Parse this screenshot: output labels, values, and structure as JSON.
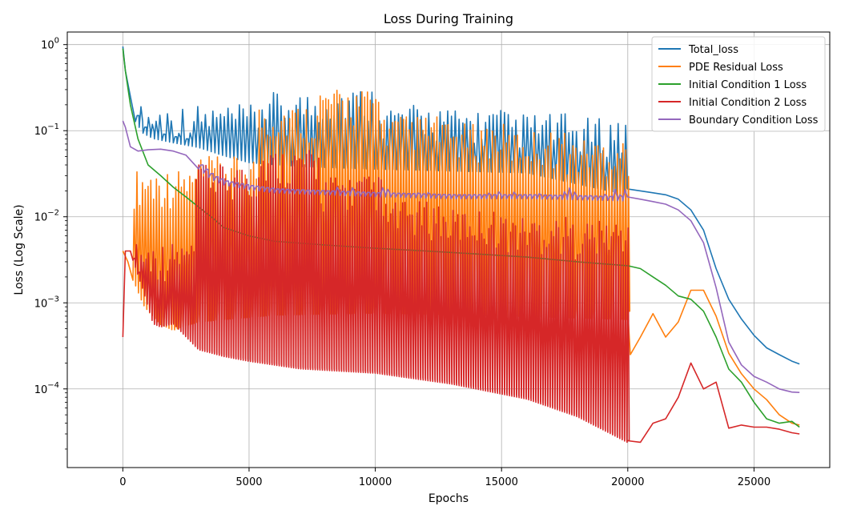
{
  "chart_data": {
    "type": "line",
    "title": "Loss During Training",
    "xlabel": "Epochs",
    "ylabel": "Loss (Log Scale)",
    "xlim": [
      -2200,
      28000
    ],
    "ylim": [
      1.22e-05,
      1.4
    ],
    "yscale": "log",
    "grid": true,
    "legend_position": "top-right",
    "x_ticks": [
      0,
      5000,
      10000,
      15000,
      20000,
      25000
    ],
    "x_tick_labels": [
      "0",
      "5000",
      "10000",
      "15000",
      "20000",
      "25000"
    ],
    "y_ticks": [
      1,
      0.1,
      0.01,
      0.001,
      0.0001
    ],
    "y_tick_labels": [
      {
        "base": "10",
        "exp": "0"
      },
      {
        "base": "10",
        "exp": "−1"
      },
      {
        "base": "10",
        "exp": "−2"
      },
      {
        "base": "10",
        "exp": "−3"
      },
      {
        "base": "10",
        "exp": "−4"
      }
    ],
    "series": [
      {
        "name": "Total_loss",
        "color": "#1f77b4",
        "x": [
          0,
          100,
          300,
          500,
          800,
          1200,
          2000,
          3000,
          4000,
          5000,
          7000,
          10000,
          13000,
          16000,
          20000,
          20500,
          21000,
          21500,
          22000,
          22500,
          23000,
          23500,
          24000,
          24500,
          25000,
          25500,
          26000,
          26500,
          26800
        ],
        "y": [
          0.95,
          0.5,
          0.25,
          0.15,
          0.11,
          0.095,
          0.085,
          0.075,
          0.06,
          0.05,
          0.045,
          0.042,
          0.04,
          0.038,
          0.021,
          0.02,
          0.019,
          0.018,
          0.016,
          0.012,
          0.007,
          0.0025,
          0.0011,
          0.00065,
          0.00042,
          0.0003,
          0.00025,
          0.00021,
          0.000195
        ],
        "spikes": {
          "start": 500,
          "end": 20000,
          "step": 150,
          "low_factor": 0.85,
          "high": [
            0.2,
            0.2,
            0.28,
            0.32,
            0.2,
            0.18,
            0.16,
            0.14
          ]
        }
      },
      {
        "name": "PDE Residual Loss",
        "color": "#ff7f0e",
        "x": [
          0,
          200,
          500,
          800,
          1000,
          1500,
          2000,
          2500,
          3000,
          4000,
          6000,
          10000,
          14000,
          17000,
          20000,
          20100,
          20500,
          21000,
          21500,
          22000,
          22500,
          23000,
          23500,
          24000,
          24500,
          25000,
          25500,
          26000,
          26500,
          26800
        ],
        "y": [
          0.004,
          0.003,
          0.002,
          0.0012,
          0.001,
          0.0007,
          0.0006,
          0.00068,
          0.00075,
          0.0008,
          0.0009,
          0.00095,
          0.0009,
          0.00085,
          0.0008,
          0.00025,
          0.0004,
          0.00075,
          0.0004,
          0.0006,
          0.0014,
          0.0014,
          0.0007,
          0.00026,
          0.00015,
          0.0001,
          7.5e-05,
          5e-05,
          4e-05,
          3.8e-05
        ],
        "spikes": {
          "start": 400,
          "end": 20000,
          "step": 110,
          "low_factor": 0.8,
          "high": [
            0.035,
            0.05,
            0.2,
            0.3,
            0.15,
            0.12,
            0.1,
            0.08
          ]
        }
      },
      {
        "name": "Initial Condition 1 Loss",
        "color": "#2ca02c",
        "x": [
          0,
          100,
          300,
          600,
          1000,
          1500,
          2000,
          2500,
          3000,
          3500,
          4000,
          5000,
          6000,
          8000,
          10000,
          12000,
          14000,
          16000,
          18000,
          20000,
          20500,
          21000,
          21500,
          22000,
          22500,
          23000,
          23500,
          24000,
          24500,
          25000,
          25500,
          26000,
          26500,
          26800
        ],
        "y": [
          0.9,
          0.5,
          0.2,
          0.08,
          0.04,
          0.03,
          0.022,
          0.017,
          0.013,
          0.01,
          0.0075,
          0.006,
          0.0052,
          0.0047,
          0.0043,
          0.004,
          0.0037,
          0.0034,
          0.003,
          0.0027,
          0.0025,
          0.002,
          0.0016,
          0.0012,
          0.0011,
          0.0008,
          0.0004,
          0.00017,
          0.00012,
          7e-05,
          4.5e-05,
          4e-05,
          4.2e-05,
          3.6e-05
        ],
        "spikes": null
      },
      {
        "name": "Initial Condition 2 Loss",
        "color": "#d62728",
        "x": [
          0,
          100,
          300,
          800,
          1200,
          1500,
          2000,
          3000,
          4000,
          5000,
          7000,
          10000,
          13000,
          16000,
          18000,
          20000,
          20500,
          21000,
          21500,
          22000,
          22500,
          23000,
          23500,
          24000,
          24500,
          25000,
          25500,
          26000,
          26500,
          26800
        ],
        "y": [
          0.0004,
          0.004,
          0.004,
          0.0015,
          0.0006,
          0.00055,
          0.0006,
          0.0003,
          0.00025,
          0.00022,
          0.00018,
          0.00016,
          0.00012,
          8e-05,
          5e-05,
          2.5e-05,
          2.4e-05,
          4e-05,
          4.5e-05,
          8e-05,
          0.0002,
          0.0001,
          0.00012,
          3.5e-05,
          3.8e-05,
          3.6e-05,
          3.6e-05,
          3.4e-05,
          3.1e-05,
          3e-05
        ],
        "spikes": {
          "start": 400,
          "end": 20000,
          "step": 95,
          "low_factor": 0.95,
          "high": [
            0.005,
            0.04,
            0.06,
            0.03,
            0.015,
            0.012,
            0.01,
            0.009
          ]
        }
      },
      {
        "name": "Boundary Condition Loss",
        "color": "#9467bd",
        "x": [
          0,
          100,
          300,
          600,
          1000,
          1500,
          2000,
          2500,
          3000,
          3500,
          4000,
          5000,
          6000,
          8000,
          10000,
          13000,
          16000,
          20000,
          20500,
          21000,
          21500,
          22000,
          22500,
          23000,
          23500,
          24000,
          24500,
          25000,
          25500,
          26000,
          26500,
          26800
        ],
        "y": [
          0.13,
          0.11,
          0.065,
          0.058,
          0.06,
          0.061,
          0.058,
          0.052,
          0.04,
          0.03,
          0.026,
          0.023,
          0.021,
          0.02,
          0.019,
          0.018,
          0.018,
          0.017,
          0.016,
          0.015,
          0.014,
          0.012,
          0.009,
          0.005,
          0.0015,
          0.00035,
          0.00019,
          0.00014,
          0.00012,
          0.0001,
          9.2e-05,
          9.1e-05
        ],
        "spikes": {
          "start": 3000,
          "end": 20000,
          "step": 200,
          "low_factor": 0.9,
          "high": [
            0.022,
            0.022,
            0.022,
            0.022,
            0.022,
            0.022,
            0.022,
            0.022
          ]
        }
      }
    ]
  }
}
